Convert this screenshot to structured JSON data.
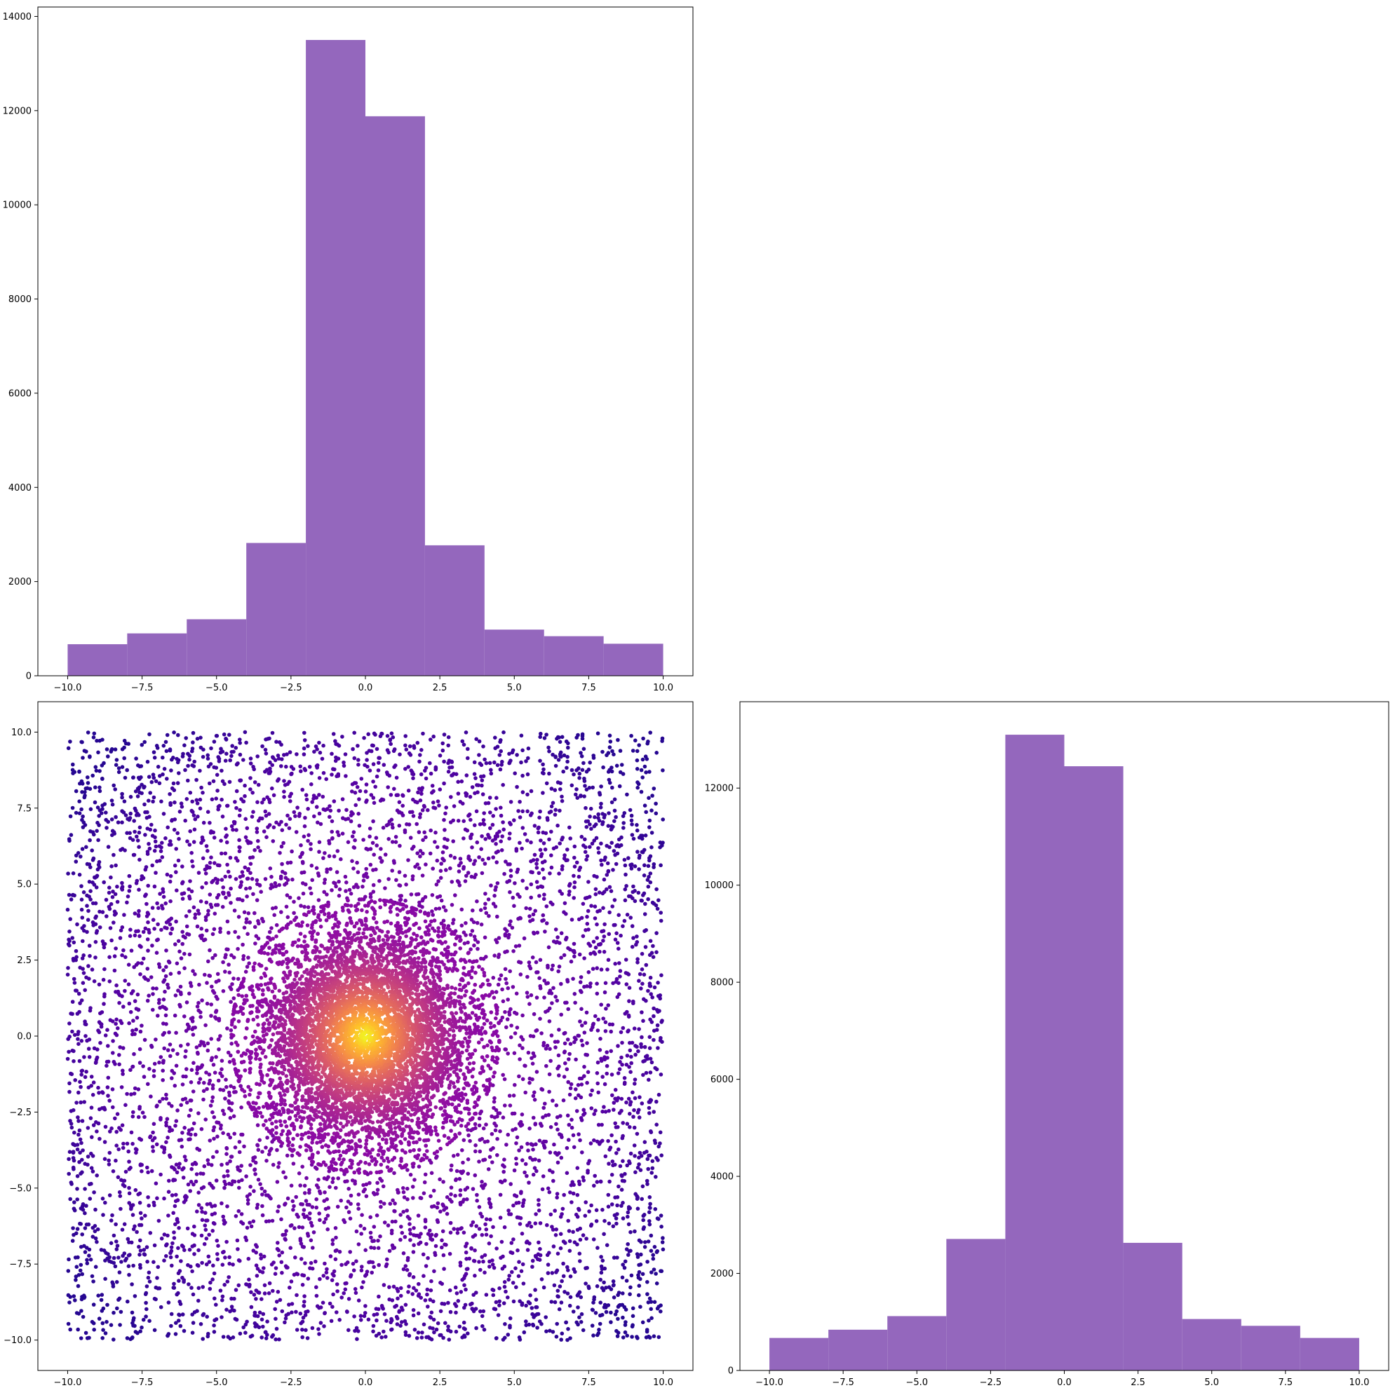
{
  "chart_data": [
    {
      "id": "hist_x",
      "type": "bar",
      "title": "",
      "xlabel": "",
      "ylabel": "",
      "bin_edges": [
        -10,
        -8,
        -6,
        -4,
        -2,
        0,
        2,
        4,
        6,
        8,
        10
      ],
      "values": [
        670,
        900,
        1200,
        2820,
        13500,
        11880,
        2770,
        980,
        840,
        680
      ],
      "color": "#9467bd",
      "xlim": [
        -11,
        11
      ],
      "ylim": [
        0,
        14200
      ],
      "xticks": [
        -10,
        -7.5,
        -5,
        -2.5,
        0,
        2.5,
        5,
        7.5,
        10
      ],
      "xtick_labels": [
        "−10.0",
        "−7.5",
        "−5.0",
        "−2.5",
        "0.0",
        "2.5",
        "5.0",
        "7.5",
        "10.0"
      ],
      "yticks": [
        0,
        2000,
        4000,
        6000,
        8000,
        10000,
        12000,
        14000
      ],
      "ytick_labels": [
        "0",
        "2000",
        "4000",
        "6000",
        "8000",
        "10000",
        "12000",
        "14000"
      ],
      "grid": false
    },
    {
      "id": "scatter_xy",
      "type": "scatter",
      "title": "",
      "xlabel": "",
      "ylabel": "",
      "xlim": [
        -11,
        11
      ],
      "ylim": [
        -11,
        11
      ],
      "colormap": "plasma",
      "color_by": "density",
      "uniform_points_range": [
        -10,
        10
      ],
      "dense_core_radius": 4.5,
      "xticks": [
        -10,
        -7.5,
        -5,
        -2.5,
        0,
        2.5,
        5,
        7.5,
        10
      ],
      "xtick_labels": [
        "−10.0",
        "−7.5",
        "−5.0",
        "−2.5",
        "0.0",
        "2.5",
        "5.0",
        "7.5",
        "10.0"
      ],
      "yticks": [
        -10,
        -7.5,
        -5,
        -2.5,
        0,
        2.5,
        5,
        7.5,
        10
      ],
      "ytick_labels": [
        "−10.0",
        "−7.5",
        "−5.0",
        "−2.5",
        "0.0",
        "2.5",
        "5.0",
        "7.5",
        "10.0"
      ],
      "grid": false
    },
    {
      "id": "hist_y",
      "type": "bar",
      "title": "",
      "xlabel": "",
      "ylabel": "",
      "bin_edges": [
        -10,
        -8,
        -6,
        -4,
        -2,
        0,
        2,
        4,
        6,
        8,
        10
      ],
      "values": [
        670,
        840,
        1120,
        2710,
        13100,
        12450,
        2630,
        1060,
        920,
        670
      ],
      "color": "#9467bd",
      "xlim": [
        -11,
        11
      ],
      "ylim": [
        0,
        13780
      ],
      "xticks": [
        -10,
        -7.5,
        -5,
        -2.5,
        0,
        2.5,
        5,
        7.5,
        10
      ],
      "xtick_labels": [
        "−10.0",
        "−7.5",
        "−5.0",
        "−2.5",
        "0.0",
        "2.5",
        "5.0",
        "7.5",
        "10.0"
      ],
      "yticks": [
        0,
        2000,
        4000,
        6000,
        8000,
        10000,
        12000
      ],
      "ytick_labels": [
        "0",
        "2000",
        "4000",
        "6000",
        "8000",
        "10000",
        "12000"
      ],
      "grid": false
    }
  ]
}
